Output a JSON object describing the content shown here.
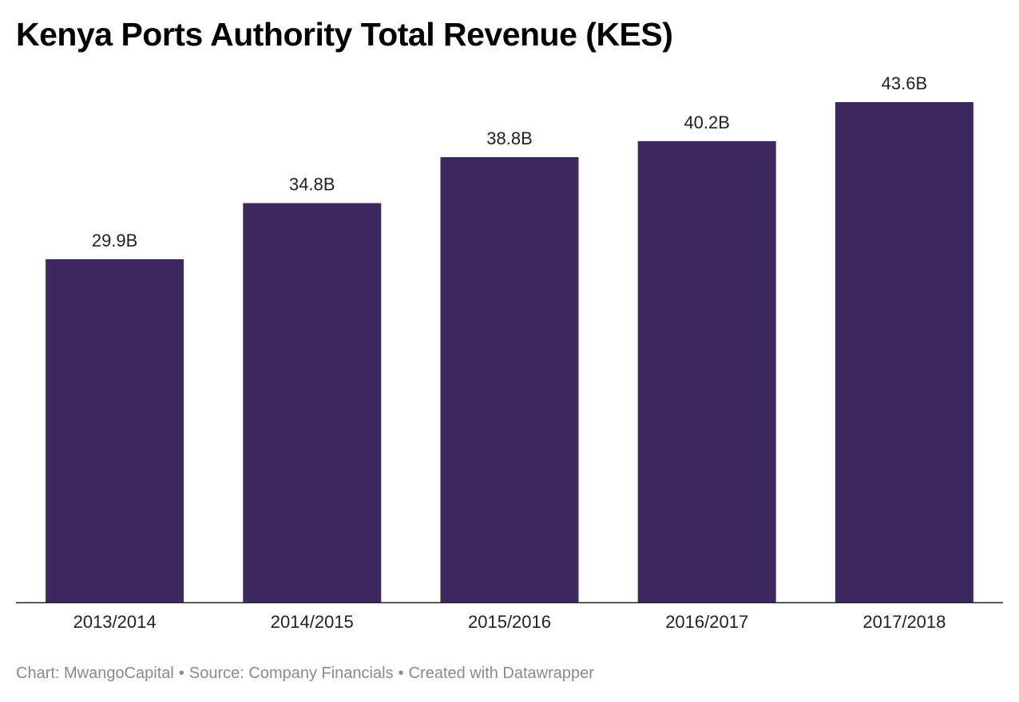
{
  "chart_data": {
    "type": "bar",
    "title": "Kenya Ports Authority Total Revenue (KES)",
    "categories": [
      "2013/2014",
      "2014/2015",
      "2015/2016",
      "2016/2017",
      "2017/2018"
    ],
    "values": [
      29.9,
      34.8,
      38.8,
      40.2,
      43.6
    ],
    "value_labels": [
      "29.9B",
      "34.8B",
      "38.8B",
      "40.2B",
      "43.6B"
    ],
    "unit": "B",
    "ylim": [
      0,
      43.6
    ],
    "grid": false,
    "legend": "none",
    "bar_color": "#3d2960",
    "xlabel": "",
    "ylabel": ""
  },
  "footer": {
    "chart_credit": "Chart: MwangoCapital",
    "source": "Source: Company Financials",
    "created_with": "Created with Datawrapper",
    "separator": "•"
  }
}
